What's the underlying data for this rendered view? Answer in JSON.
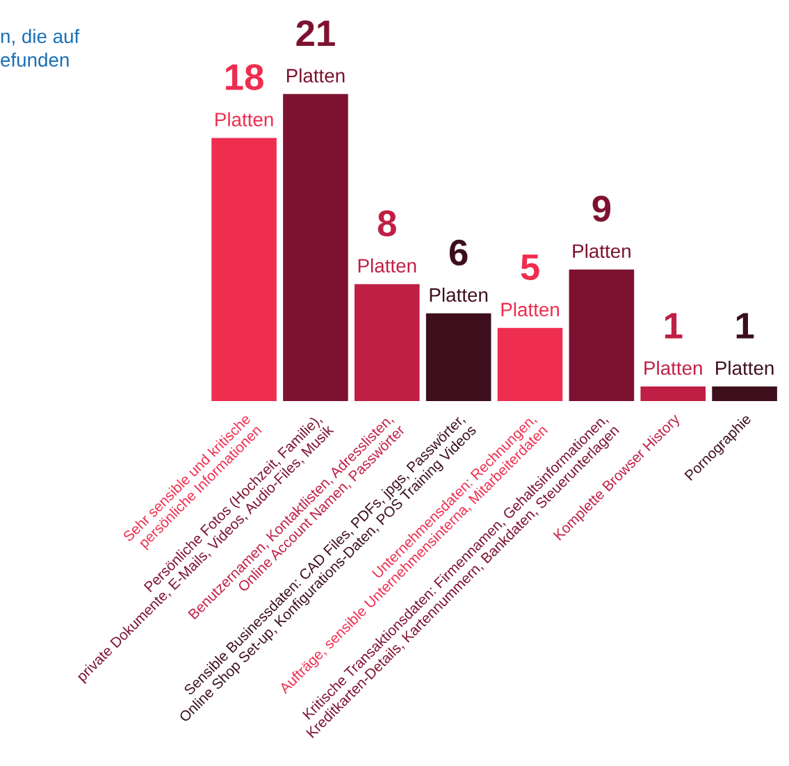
{
  "chart_data": {
    "type": "bar",
    "title": "n, die auf\nefunden",
    "categories": [
      "Sehr sensible und kritische\npersönliche Informationen",
      "Persönliche Fotos (Hochzeit, Familie),\nprivate Dokumente, E-Mails, Videos, Audio-Files, Musik",
      "Benutzernamen, Kontaktlisten, Adresslisten,\nOnline Account Namen, Passwörter",
      "Sensible Businessdaten: CAD Files, PDFs, jpgs, Passwörter,\nOnline Shop Set-up, Konfigurations-Daten, POS Training Videos",
      "Unternehmensdaten: Rechnungen,\nAufträge, sensible Unternehmensinterna, Mitarbeiterdaten",
      "Kritische Transaktionsdaten: Firmennamen, Gehaltsinformationen,\nKreditkarten-Details, Kartennummern, Bankdaten, Steuerunterlagen",
      "Komplette Browser History",
      "Pornographie"
    ],
    "values": [
      18,
      21,
      8,
      6,
      5,
      9,
      1,
      1
    ],
    "colors": [
      "#ef2d4f",
      "#7d1230",
      "#c01f45",
      "#3d0f1c",
      "#ef2d4f",
      "#7d1230",
      "#c01f45",
      "#3d0f1c"
    ],
    "value_labels": [
      "18 Platten",
      "21 Platten",
      "8 Platten",
      "6 Platten",
      "5 Platten",
      "9 Platten",
      "1 Platten",
      "1 Platten"
    ],
    "grid": false,
    "legend": false
  }
}
